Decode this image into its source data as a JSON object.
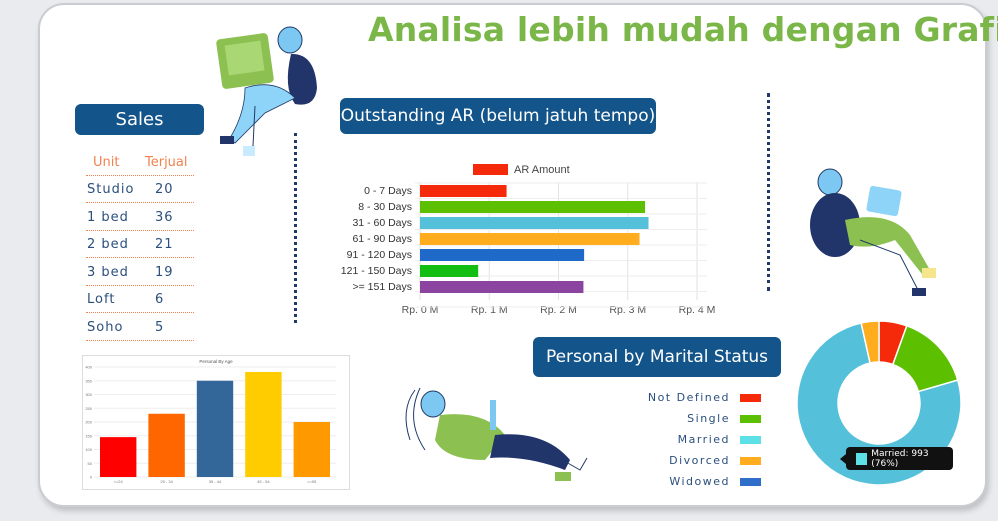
{
  "header": {
    "title": "Analisa lebih mudah dengan Grafik"
  },
  "sales": {
    "title": "Sales",
    "columns": [
      "Unit",
      "Terjual"
    ],
    "rows": [
      {
        "unit": "Studio",
        "sold": "20"
      },
      {
        "unit": "1 bed",
        "sold": "36"
      },
      {
        "unit": "2 bed",
        "sold": "21"
      },
      {
        "unit": "3 bed",
        "sold": "19"
      },
      {
        "unit": "Loft",
        "sold": "6"
      },
      {
        "unit": "Soho",
        "sold": "5"
      }
    ]
  },
  "ar": {
    "title": "Outstanding AR (belum jatuh tempo)"
  },
  "marital": {
    "title": "Personal by Marital Status",
    "tooltip": "Married: 993 (76%)",
    "tooltip_color": "#5de0e6"
  },
  "chart_data": [
    {
      "type": "bar",
      "orientation": "horizontal",
      "categories": [
        "0 - 7 Days",
        "8 - 30 Days",
        "31 - 60 Days",
        "61 - 90 Days",
        "91 - 120 Days",
        "121 - 150 Days",
        ">= 151 Days"
      ],
      "series": [
        {
          "name": "AR Amount",
          "values": [
            1.25,
            3.25,
            3.3,
            3.17,
            2.37,
            0.84,
            2.36
          ]
        }
      ],
      "colors": [
        "#f52a0a",
        "#5cbf00",
        "#55c0d9",
        "#ffad1f",
        "#1f6ac8",
        "#11be11",
        "#8b45a0"
      ],
      "legend_color": "#f52a0a",
      "xlim": [
        0,
        4
      ],
      "xticks": [
        "Rp. 0 M",
        "Rp. 1 M",
        "Rp. 2 M",
        "Rp. 3 M",
        "Rp. 4 M"
      ],
      "unit": "Rp. M",
      "grid": true,
      "legend": "top"
    },
    {
      "type": "bar",
      "title": "Personal By Age",
      "categories": [
        "<=24",
        "25 - 34",
        "35 - 44",
        "45 - 54",
        ">=55"
      ],
      "values": [
        145,
        230,
        350,
        382,
        200
      ],
      "colors": [
        "#ff0000",
        "#ff6600",
        "#336699",
        "#ffcc00",
        "#ff9900"
      ],
      "ylim": [
        0,
        400
      ],
      "yticks": [
        "0",
        "50",
        "100",
        "150",
        "200",
        "250",
        "300",
        "350",
        "400"
      ],
      "grid": true
    },
    {
      "type": "pie",
      "donut": true,
      "categories": [
        "Not Defined",
        "Single",
        "Married",
        "Divorced",
        "Widowed"
      ],
      "values": [
        5.5,
        15,
        76,
        3.5,
        0
      ],
      "unit": "%",
      "colors": [
        "#f52a0a",
        "#5cbf00",
        "#55c0d9",
        "#ffad1f",
        "#1f6ac8"
      ],
      "legend_colors": [
        "#f52a0a",
        "#5cbf00",
        "#5de0e6",
        "#ffad1f",
        "#2f6fca"
      ],
      "legend": "left"
    }
  ]
}
